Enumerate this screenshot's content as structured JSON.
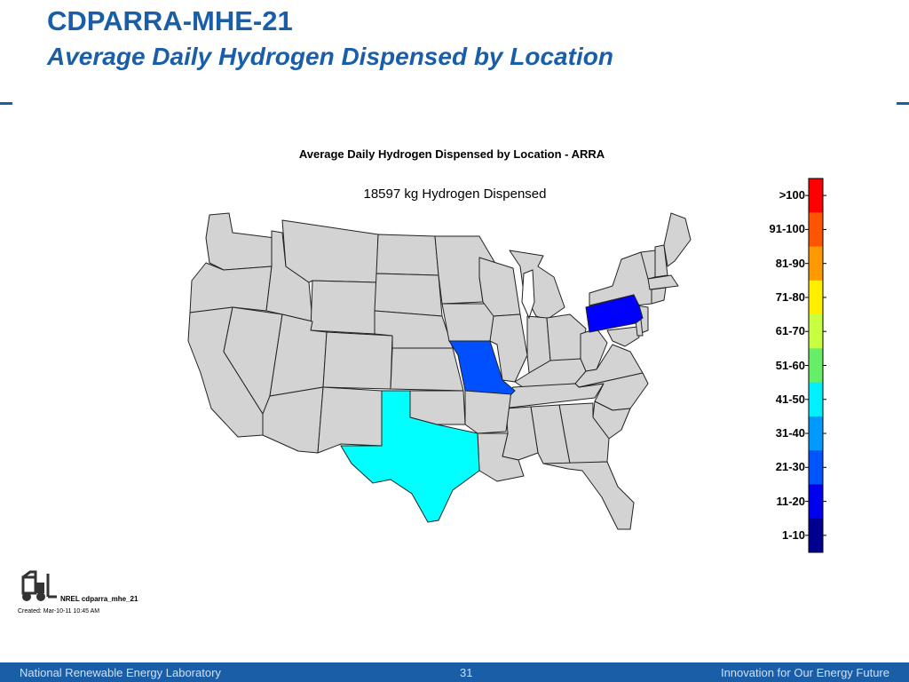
{
  "slide": {
    "title_line1": "CDPARRA-MHE-21",
    "title_line2": "Average Daily Hydrogen Dispensed by Location"
  },
  "map": {
    "title": "Average Daily Hydrogen Dispensed by Location - ARRA",
    "subtitle": "18597 kg Hydrogen Dispensed",
    "default_state_color": "#d3d3d3",
    "highlighted_states": [
      {
        "state": "Texas",
        "bin": "41-50",
        "color": "#00ffff"
      },
      {
        "state": "Missouri",
        "bin": "21-30",
        "color": "#0050ff"
      },
      {
        "state": "Pennsylvania",
        "bin": "11-20",
        "color": "#0000ff"
      }
    ]
  },
  "legend": {
    "bins": [
      ">100",
      "91-100",
      "81-90",
      "71-80",
      "61-70",
      "51-60",
      "41-50",
      "31-40",
      "21-30",
      "11-20",
      "1-10"
    ],
    "colors": [
      "#ff0000",
      "#ff5500",
      "#ff9900",
      "#ffee00",
      "#c8ff40",
      "#66ee66",
      "#00f0ff",
      "#0099ff",
      "#0055ff",
      "#0000ee",
      "#000090"
    ]
  },
  "footer": {
    "organization": "National Renewable Energy Laboratory",
    "page_number": "31",
    "tagline": "Innovation for Our Energy Future"
  },
  "credit": {
    "label": "NREL cdparra_mhe_21",
    "created": "Created: Mar-10-11 10:45 AM",
    "logo_icon": "forklift-icon"
  }
}
